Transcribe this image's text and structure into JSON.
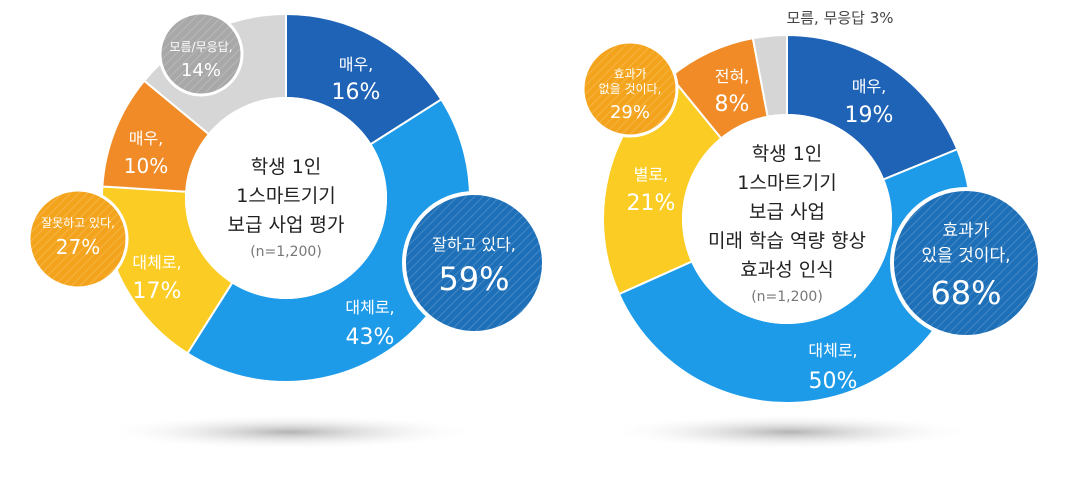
{
  "colors": {
    "dark_blue": "#1f63b7",
    "light_blue": "#1e9be8",
    "yellow": "#fbcc23",
    "orange": "#f08b27",
    "gray": "#d6d6d6",
    "bubble_orange": "#f4a41c",
    "bubble_blue": "#1d6fb8",
    "bubble_gray": "#a8a8a8"
  },
  "chart_data": [
    {
      "type": "pie",
      "title_lines": [
        "학생 1인",
        "1스마트기기",
        "보급 사업 평가"
      ],
      "sample": "(n=1,200)",
      "slices": [
        {
          "label": "매우,",
          "value": 16,
          "pct": "16%",
          "color_key": "dark_blue"
        },
        {
          "label": "대체로,",
          "value": 43,
          "pct": "43%",
          "color_key": "light_blue"
        },
        {
          "label": "대체로,",
          "value": 17,
          "pct": "17%",
          "color_key": "yellow"
        },
        {
          "label": "매우,",
          "value": 10,
          "pct": "10%",
          "color_key": "orange"
        },
        {
          "label": "모름/무응답,",
          "value": 14,
          "pct": "14%",
          "color_key": "gray"
        }
      ],
      "groups": [
        {
          "label": "잘하고 있다,",
          "pct": "59%"
        },
        {
          "label": "잘못하고 있다,",
          "pct": "27%"
        },
        {
          "label": "모름/무응답,",
          "pct": "14%"
        }
      ]
    },
    {
      "type": "pie",
      "title_lines": [
        "학생 1인",
        "1스마트기기",
        "보급 사업",
        "미래 학습 역량 향상",
        "효과성 인식"
      ],
      "sample": "(n=1,200)",
      "slices": [
        {
          "label": "매우,",
          "value": 19,
          "pct": "19%",
          "color_key": "dark_blue"
        },
        {
          "label": "대체로,",
          "value": 50,
          "pct": "50%",
          "color_key": "light_blue"
        },
        {
          "label": "별로,",
          "value": 21,
          "pct": "21%",
          "color_key": "yellow"
        },
        {
          "label": "전혀,",
          "value": 8,
          "pct": "8%",
          "color_key": "orange"
        },
        {
          "label": "모름, 무응답 3%",
          "value": 3,
          "pct": "3%",
          "color_key": "gray"
        }
      ],
      "groups": [
        {
          "label_lines": [
            "효과가",
            "있을 것이다,"
          ],
          "pct": "68%"
        },
        {
          "label_lines": [
            "효과가",
            "없을 것이다,"
          ],
          "pct": "29%"
        }
      ]
    }
  ]
}
